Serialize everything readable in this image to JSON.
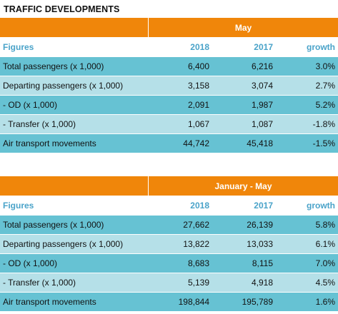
{
  "title": "TRAFFIC DEVELOPMENTS",
  "tables": [
    {
      "period": "May",
      "header": [
        "Figures",
        "2018",
        "2017",
        "growth"
      ],
      "rows": [
        [
          "Total passengers (x 1,000)",
          "6,400",
          "6,216",
          "3.0%"
        ],
        [
          "Departing passengers (x 1,000)",
          "3,158",
          "3,074",
          "2.7%"
        ],
        [
          "- OD (x 1,000)",
          "2,091",
          "1,987",
          "5.2%"
        ],
        [
          "- Transfer  (x 1,000)",
          "1,067",
          "1,087",
          "-1.8%"
        ],
        [
          "Air transport movements",
          "44,742",
          "45,418",
          "-1.5%"
        ]
      ]
    },
    {
      "period": "January - May",
      "header": [
        "Figures",
        "2018",
        "2017",
        "growth"
      ],
      "rows": [
        [
          "Total passengers (x 1,000)",
          "27,662",
          "26,139",
          "5.8%"
        ],
        [
          "Departing passengers (x 1,000)",
          "13,822",
          "13,033",
          "6.1%"
        ],
        [
          "- OD (x 1,000)",
          "8,683",
          "8,115",
          "7.0%"
        ],
        [
          "- Transfer  (x 1,000)",
          "5,139",
          "4,918",
          "4.5%"
        ],
        [
          "Air transport movements",
          "198,844",
          "195,789",
          "1.6%"
        ]
      ]
    }
  ],
  "colors": {
    "header_orange": "#f0860a",
    "row_dark": "#66c2d3",
    "row_light": "#b5e0e8",
    "subheader_text": "#4aa3c9"
  }
}
